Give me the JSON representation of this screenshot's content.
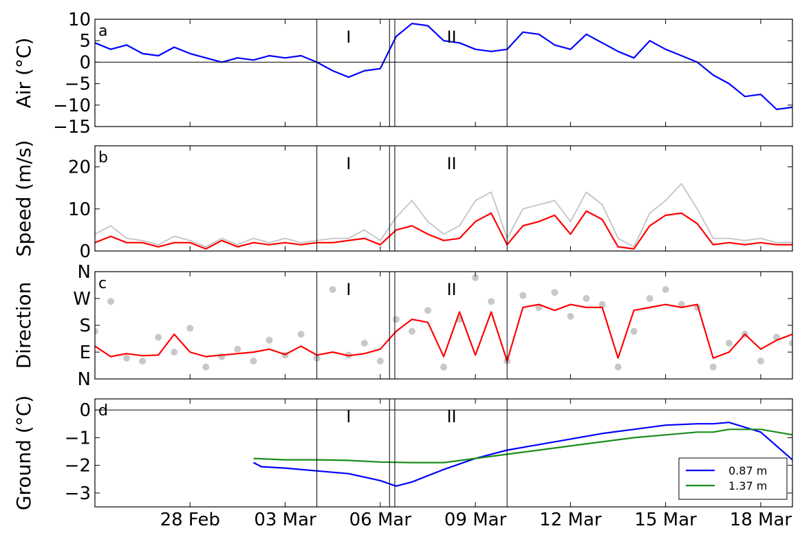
{
  "chart_data": [
    {
      "type": "line",
      "panel_label": "a",
      "ylabel": "Air (°C)",
      "ylim": [
        -15,
        10
      ],
      "yticks": [
        "10",
        "5",
        "0",
        "−5",
        "−10",
        "−15"
      ],
      "yticks_values": [
        10,
        5,
        0,
        -5,
        -10,
        -15
      ],
      "zero_line": true,
      "series": [
        {
          "color": "#0000ff",
          "x": [
            "2014-02-25",
            "2014-02-25T12:00",
            "2014-02-26",
            "2014-02-26T12:00",
            "2014-02-27",
            "2014-02-27T12:00",
            "2014-02-28",
            "2014-02-28T12:00",
            "2014-03-01",
            "2014-03-01T12:00",
            "2014-03-02",
            "2014-03-02T12:00",
            "2014-03-03",
            "2014-03-03T12:00",
            "2014-03-04",
            "2014-03-04T12:00",
            "2014-03-05",
            "2014-03-05T12:00",
            "2014-03-06",
            "2014-03-06T12:00",
            "2014-03-07",
            "2014-03-07T12:00",
            "2014-03-08",
            "2014-03-08T12:00",
            "2014-03-09",
            "2014-03-09T12:00",
            "2014-03-10",
            "2014-03-10T12:00",
            "2014-03-11",
            "2014-03-11T12:00",
            "2014-03-12",
            "2014-03-12T12:00",
            "2014-03-13",
            "2014-03-13T12:00",
            "2014-03-14",
            "2014-03-14T12:00",
            "2014-03-15",
            "2014-03-15T12:00",
            "2014-03-16",
            "2014-03-16T12:00",
            "2014-03-17",
            "2014-03-17T12:00",
            "2014-03-18",
            "2014-03-18T12:00",
            "2014-03-19"
          ],
          "values": [
            4.5,
            3,
            4,
            2,
            1.5,
            3.5,
            2,
            1,
            0,
            1,
            0.5,
            1.5,
            1,
            1.5,
            0,
            -2,
            -3.5,
            -2,
            -1.5,
            6,
            9,
            8.5,
            5,
            4.5,
            3,
            2.5,
            3,
            7,
            6.5,
            4,
            3,
            6.5,
            4.5,
            2.5,
            1,
            5,
            3,
            1.5,
            0,
            -3,
            -5,
            -8,
            -7.5,
            -11,
            -10.5
          ]
        }
      ]
    },
    {
      "type": "line",
      "panel_label": "b",
      "ylabel": "Speed (m/s)",
      "ylim": [
        0,
        25
      ],
      "yticks": [
        "20",
        "10",
        "0"
      ],
      "yticks_values": [
        20,
        10,
        0
      ],
      "series": [
        {
          "color": "#c8c8c8",
          "x": [
            "2014-02-25",
            "2014-02-25T12:00",
            "2014-02-26",
            "2014-02-26T12:00",
            "2014-02-27",
            "2014-02-27T12:00",
            "2014-02-28",
            "2014-02-28T12:00",
            "2014-03-01",
            "2014-03-01T12:00",
            "2014-03-02",
            "2014-03-02T12:00",
            "2014-03-03",
            "2014-03-03T12:00",
            "2014-03-04",
            "2014-03-04T12:00",
            "2014-03-05",
            "2014-03-05T12:00",
            "2014-03-06",
            "2014-03-06T12:00",
            "2014-03-07",
            "2014-03-07T12:00",
            "2014-03-08",
            "2014-03-08T12:00",
            "2014-03-09",
            "2014-03-09T12:00",
            "2014-03-10",
            "2014-03-10T12:00",
            "2014-03-11",
            "2014-03-11T12:00",
            "2014-03-12",
            "2014-03-12T12:00",
            "2014-03-13",
            "2014-03-13T12:00",
            "2014-03-14",
            "2014-03-14T12:00",
            "2014-03-15",
            "2014-03-15T12:00",
            "2014-03-16",
            "2014-03-16T12:00",
            "2014-03-17",
            "2014-03-17T12:00",
            "2014-03-18",
            "2014-03-18T12:00",
            "2014-03-19"
          ],
          "values": [
            4,
            6,
            3,
            2.5,
            1.5,
            3.5,
            2.5,
            1,
            3,
            1.5,
            3,
            2,
            3,
            2,
            2.5,
            3,
            3,
            5,
            2.5,
            8,
            12,
            7,
            4,
            6,
            12,
            14,
            3,
            10,
            11,
            12,
            7,
            14,
            11,
            3,
            1,
            9,
            12,
            16,
            10,
            3,
            3,
            2.5,
            3,
            2,
            2
          ]
        },
        {
          "color": "#ff0000",
          "x": [
            "2014-02-25",
            "2014-02-25T12:00",
            "2014-02-26",
            "2014-02-26T12:00",
            "2014-02-27",
            "2014-02-27T12:00",
            "2014-02-28",
            "2014-02-28T12:00",
            "2014-03-01",
            "2014-03-01T12:00",
            "2014-03-02",
            "2014-03-02T12:00",
            "2014-03-03",
            "2014-03-03T12:00",
            "2014-03-04",
            "2014-03-04T12:00",
            "2014-03-05",
            "2014-03-05T12:00",
            "2014-03-06",
            "2014-03-06T12:00",
            "2014-03-07",
            "2014-03-07T12:00",
            "2014-03-08",
            "2014-03-08T12:00",
            "2014-03-09",
            "2014-03-09T12:00",
            "2014-03-10",
            "2014-03-10T12:00",
            "2014-03-11",
            "2014-03-11T12:00",
            "2014-03-12",
            "2014-03-12T12:00",
            "2014-03-13",
            "2014-03-13T12:00",
            "2014-03-14",
            "2014-03-14T12:00",
            "2014-03-15",
            "2014-03-15T12:00",
            "2014-03-16",
            "2014-03-16T12:00",
            "2014-03-17",
            "2014-03-17T12:00",
            "2014-03-18",
            "2014-03-18T12:00",
            "2014-03-19"
          ],
          "values": [
            2,
            3.5,
            2,
            2,
            1,
            2,
            2,
            0.5,
            2.5,
            1,
            2,
            1.5,
            2,
            1.5,
            2,
            2,
            2.5,
            3,
            1.5,
            5,
            6,
            4,
            2.5,
            3,
            7,
            9,
            1.5,
            6,
            7,
            8.5,
            4,
            9.5,
            7.5,
            1,
            0.5,
            6,
            8.5,
            9,
            6.5,
            1.5,
            2,
            1.5,
            2,
            1.5,
            1.5
          ]
        }
      ]
    },
    {
      "type": "scatter",
      "panel_label": "c",
      "ylabel": "Direction",
      "ylim": [
        0,
        360
      ],
      "yticks": [
        "N",
        "W",
        "S",
        "E",
        "N"
      ],
      "yticks_values": [
        360,
        270,
        180,
        90,
        0
      ],
      "series": [
        {
          "color": "#c8c8c8",
          "x": [
            "2014-02-25",
            "2014-02-25T12:00",
            "2014-02-26",
            "2014-02-26T12:00",
            "2014-02-27",
            "2014-02-27T12:00",
            "2014-02-28",
            "2014-02-28T12:00",
            "2014-03-01",
            "2014-03-01T12:00",
            "2014-03-02",
            "2014-03-02T12:00",
            "2014-03-03",
            "2014-03-03T12:00",
            "2014-03-04",
            "2014-03-04T12:00",
            "2014-03-05",
            "2014-03-05T12:00",
            "2014-03-06",
            "2014-03-06T12:00",
            "2014-03-07",
            "2014-03-07T12:00",
            "2014-03-08",
            "2014-03-08T12:00",
            "2014-03-09",
            "2014-03-09T12:00",
            "2014-03-10",
            "2014-03-10T12:00",
            "2014-03-11",
            "2014-03-11T12:00",
            "2014-03-12",
            "2014-03-12T12:00",
            "2014-03-13",
            "2014-03-13T12:00",
            "2014-03-14",
            "2014-03-14T12:00",
            "2014-03-15",
            "2014-03-15T12:00",
            "2014-03-16",
            "2014-03-16T12:00",
            "2014-03-17",
            "2014-03-17T12:00",
            "2014-03-18",
            "2014-03-18T12:00",
            "2014-03-19"
          ],
          "values": [
            160,
            260,
            70,
            60,
            140,
            90,
            170,
            40,
            75,
            100,
            60,
            130,
            80,
            150,
            70,
            300,
            80,
            120,
            60,
            200,
            160,
            230,
            40,
            200,
            340,
            260,
            60,
            280,
            240,
            290,
            210,
            270,
            250,
            40,
            160,
            270,
            300,
            250,
            240,
            40,
            120,
            150,
            60,
            140,
            120
          ]
        },
        {
          "color": "#ff0000",
          "type": "line",
          "x": [
            "2014-02-25",
            "2014-02-25T12:00",
            "2014-02-26",
            "2014-02-26T12:00",
            "2014-02-27",
            "2014-02-27T12:00",
            "2014-02-28",
            "2014-02-28T12:00",
            "2014-03-01",
            "2014-03-01T12:00",
            "2014-03-02",
            "2014-03-02T12:00",
            "2014-03-03",
            "2014-03-03T12:00",
            "2014-03-04",
            "2014-03-04T12:00",
            "2014-03-05",
            "2014-03-05T12:00",
            "2014-03-06",
            "2014-03-06T12:00",
            "2014-03-07",
            "2014-03-07T12:00",
            "2014-03-08",
            "2014-03-08T12:00",
            "2014-03-09",
            "2014-03-09T12:00",
            "2014-03-10",
            "2014-03-10T12:00",
            "2014-03-11",
            "2014-03-11T12:00",
            "2014-03-12",
            "2014-03-12T12:00",
            "2014-03-13",
            "2014-03-13T12:00",
            "2014-03-14",
            "2014-03-14T12:00",
            "2014-03-15",
            "2014-03-15T12:00",
            "2014-03-16",
            "2014-03-16T12:00",
            "2014-03-17",
            "2014-03-17T12:00",
            "2014-03-18",
            "2014-03-18T12:00",
            "2014-03-19"
          ],
          "values": [
            110,
            75,
            85,
            78,
            80,
            150,
            90,
            75,
            80,
            85,
            90,
            100,
            82,
            110,
            80,
            90,
            78,
            85,
            100,
            160,
            200,
            190,
            75,
            225,
            80,
            225,
            60,
            240,
            250,
            230,
            250,
            240,
            240,
            70,
            230,
            240,
            250,
            240,
            250,
            70,
            90,
            150,
            100,
            130,
            150
          ]
        }
      ]
    },
    {
      "type": "line",
      "panel_label": "d",
      "ylabel": "Ground (°C)",
      "ylim": [
        -3.5,
        0.4
      ],
      "yticks": [
        "0",
        "−1",
        "−2",
        "−3"
      ],
      "yticks_values": [
        0,
        -1,
        -2,
        -3
      ],
      "zero_line": true,
      "legend": {
        "position": "lower-right",
        "entries": [
          "0.87 m",
          "1.37 m"
        ]
      },
      "series": [
        {
          "name": "0.87 m",
          "color": "#0000ff",
          "x": [
            "2014-03-02",
            "2014-03-02T06:00",
            "2014-03-03",
            "2014-03-04",
            "2014-03-05",
            "2014-03-06",
            "2014-03-06T12:00",
            "2014-03-07",
            "2014-03-08",
            "2014-03-09",
            "2014-03-10",
            "2014-03-11",
            "2014-03-12",
            "2014-03-13",
            "2014-03-14",
            "2014-03-15",
            "2014-03-16",
            "2014-03-16T12:00",
            "2014-03-17",
            "2014-03-18",
            "2014-03-19"
          ],
          "values": [
            -1.9,
            -2.05,
            -2.1,
            -2.2,
            -2.3,
            -2.55,
            -2.75,
            -2.6,
            -2.15,
            -1.75,
            -1.45,
            -1.25,
            -1.05,
            -0.85,
            -0.7,
            -0.55,
            -0.5,
            -0.5,
            -0.45,
            -0.8,
            -1.8
          ]
        },
        {
          "name": "1.37 m",
          "color": "#1a8c1a",
          "x": [
            "2014-03-02",
            "2014-03-03",
            "2014-03-04",
            "2014-03-05",
            "2014-03-06",
            "2014-03-07",
            "2014-03-08",
            "2014-03-09",
            "2014-03-10",
            "2014-03-11",
            "2014-03-12",
            "2014-03-13",
            "2014-03-14",
            "2014-03-15",
            "2014-03-16",
            "2014-03-16T12:00",
            "2014-03-17",
            "2014-03-18",
            "2014-03-19"
          ],
          "values": [
            -1.75,
            -1.8,
            -1.8,
            -1.82,
            -1.88,
            -1.9,
            -1.9,
            -1.75,
            -1.6,
            -1.45,
            -1.3,
            -1.15,
            -1.0,
            -0.9,
            -0.8,
            -0.8,
            -0.7,
            -0.7,
            -0.9
          ]
        }
      ]
    }
  ],
  "x_axis": {
    "start": "2014-02-25",
    "end": "2014-03-19",
    "ticks": [
      {
        "date": "2014-02-28",
        "label": "28 Feb"
      },
      {
        "date": "2014-03-03",
        "label": "03 Mar"
      },
      {
        "date": "2014-03-06",
        "label": "06 Mar"
      },
      {
        "date": "2014-03-09",
        "label": "09 Mar"
      },
      {
        "date": "2014-03-12",
        "label": "12 Mar"
      },
      {
        "date": "2014-03-15",
        "label": "15 Mar"
      },
      {
        "date": "2014-03-18",
        "label": "18 Mar"
      }
    ]
  },
  "vertical_lines": [
    "2014-03-04",
    "2014-03-06T07:00",
    "2014-03-06T11:00",
    "2014-03-10"
  ],
  "period_annotations": [
    {
      "label": "I",
      "date": "2014-03-05"
    },
    {
      "label": "II",
      "date": "2014-03-08T06:00"
    }
  ]
}
